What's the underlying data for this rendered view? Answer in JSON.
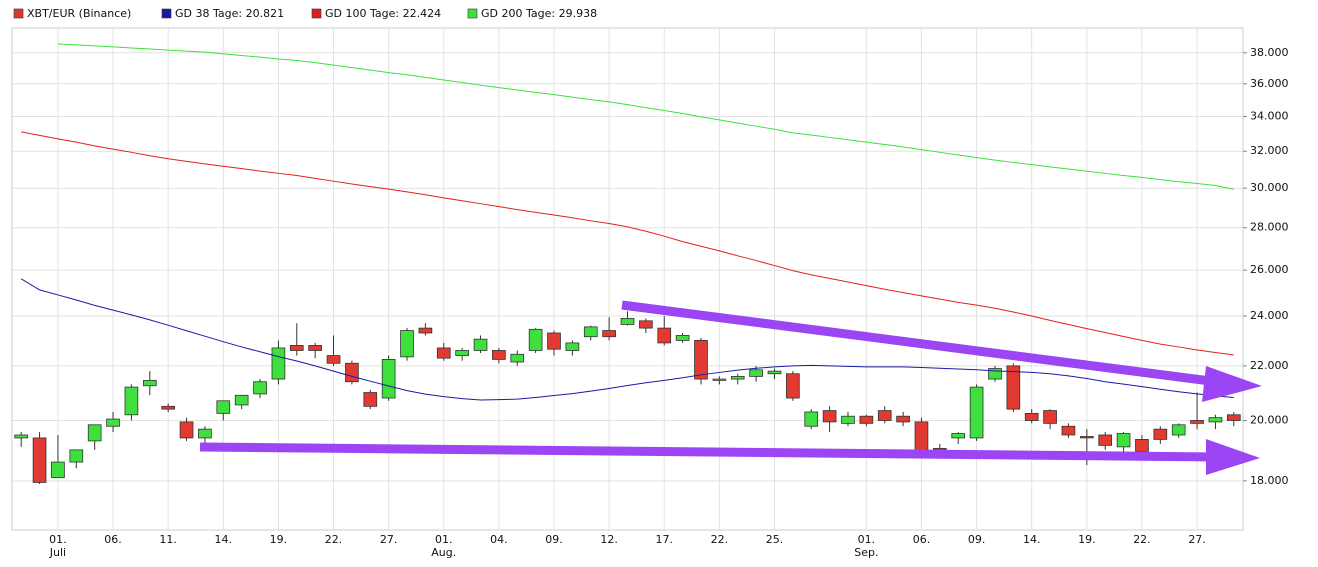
{
  "chart_data": {
    "type": "candlestick",
    "log_scale": true,
    "grid": true,
    "categories": [
      null,
      null,
      "01.",
      null,
      null,
      "06.",
      null,
      null,
      "11.",
      null,
      null,
      "14.",
      null,
      null,
      "19.",
      null,
      null,
      "22.",
      null,
      null,
      "27.",
      null,
      null,
      "01.",
      null,
      null,
      "04.",
      null,
      null,
      "09.",
      null,
      null,
      "12.",
      null,
      null,
      "17.",
      null,
      null,
      "22.",
      null,
      null,
      "25.",
      null,
      null,
      null,
      null,
      "01.",
      null,
      null,
      "06.",
      null,
      null,
      "09.",
      null,
      null,
      "14.",
      null,
      null,
      "19.",
      null,
      null,
      "22.",
      null,
      null,
      "27.",
      null,
      null
    ],
    "category_groups": [
      null,
      null,
      "Juli",
      null,
      null,
      null,
      null,
      null,
      null,
      null,
      null,
      null,
      null,
      null,
      null,
      null,
      null,
      null,
      null,
      null,
      null,
      null,
      null,
      "Aug.",
      null,
      null,
      null,
      null,
      null,
      null,
      null,
      null,
      null,
      null,
      null,
      null,
      null,
      null,
      null,
      null,
      null,
      null,
      null,
      null,
      null,
      null,
      "Sep.",
      null,
      null,
      null,
      null,
      null,
      null,
      null,
      null,
      null,
      null,
      null,
      null,
      null,
      null,
      null,
      null,
      null,
      null,
      null,
      null
    ],
    "candles": {
      "name": "XBT/EUR (Binance)",
      "color": "#d93a30",
      "up_color": "#3ee03e",
      "down_color": "#e23a30",
      "open": [
        19400,
        19400,
        18100,
        18600,
        19300,
        19800,
        20200,
        21250,
        20500,
        19950,
        19400,
        20250,
        20550,
        20950,
        21500,
        22800,
        22800,
        22400,
        22100,
        21000,
        20800,
        22350,
        23500,
        22700,
        22400,
        22600,
        22600,
        22150,
        22600,
        23300,
        22600,
        23150,
        23400,
        23650,
        23800,
        23500,
        23000,
        23000,
        21450,
        21500,
        21600,
        21700,
        21700,
        19800,
        20350,
        19900,
        20150,
        20350,
        20150,
        19950,
        19050,
        19400,
        19400,
        21500,
        22000,
        20250,
        20350,
        19800,
        19450,
        19500,
        19100,
        19350,
        19700,
        19500,
        20000,
        19950,
        20200
      ],
      "high": [
        19600,
        19600,
        19500,
        19000,
        19600,
        20300,
        21300,
        21800,
        20600,
        20100,
        19800,
        20500,
        20900,
        21500,
        23000,
        23700,
        22900,
        23200,
        22200,
        21100,
        22400,
        23500,
        23700,
        22900,
        22700,
        23200,
        22700,
        22600,
        23500,
        23400,
        23000,
        23600,
        23950,
        24200,
        23900,
        24000,
        23300,
        23100,
        21600,
        21700,
        22000,
        21900,
        21800,
        20400,
        20500,
        20300,
        20200,
        20500,
        20300,
        20100,
        19200,
        19600,
        21300,
        22000,
        22100,
        20400,
        20400,
        19900,
        19700,
        19600,
        19600,
        19500,
        19800,
        19900,
        21000,
        20200,
        20300
      ],
      "low": [
        19100,
        17900,
        18100,
        18400,
        19000,
        19600,
        20000,
        20900,
        20300,
        19300,
        19200,
        20000,
        20400,
        20800,
        21300,
        22400,
        22300,
        22000,
        21300,
        20400,
        20700,
        22200,
        23200,
        22200,
        22200,
        22500,
        22100,
        22000,
        22500,
        22400,
        22400,
        23000,
        23000,
        23600,
        23300,
        22800,
        22900,
        21300,
        21300,
        21300,
        21400,
        21500,
        20700,
        19700,
        19600,
        19800,
        19800,
        19900,
        19800,
        18800,
        18900,
        19200,
        19300,
        21400,
        20300,
        19900,
        19700,
        19400,
        18500,
        19000,
        18900,
        18700,
        19200,
        19400,
        19700,
        19700,
        19800
      ],
      "close": [
        19500,
        17950,
        18600,
        19000,
        19850,
        20050,
        21200,
        21450,
        20400,
        19400,
        19700,
        20700,
        20900,
        21400,
        22700,
        22600,
        22600,
        22100,
        21400,
        20500,
        22250,
        23400,
        23300,
        22300,
        22600,
        23050,
        22250,
        22450,
        23450,
        22650,
        22900,
        23550,
        23150,
        23900,
        23500,
        22900,
        23200,
        21500,
        21500,
        21600,
        21850,
        21800,
        20800,
        20300,
        19950,
        20150,
        19900,
        20000,
        19950,
        19000,
        19000,
        19550,
        21200,
        21900,
        20400,
        20000,
        19900,
        19500,
        19400,
        19150,
        19550,
        18950,
        19350,
        19850,
        19900,
        20100,
        20000
      ]
    },
    "series": [
      {
        "name": "GD 38 Tage: 20.821",
        "color": "#1a1aa8",
        "values": [
          25610,
          25120,
          24900,
          24680,
          24450,
          24250,
          24050,
          23840,
          23620,
          23390,
          23170,
          22950,
          22740,
          22550,
          22360,
          22190,
          22000,
          21800,
          21600,
          21420,
          21240,
          21070,
          20940,
          20850,
          20780,
          20730,
          20740,
          20760,
          20820,
          20890,
          20960,
          21050,
          21150,
          21260,
          21360,
          21450,
          21550,
          21660,
          21750,
          21840,
          21910,
          21960,
          22000,
          22020,
          22000,
          21980,
          21960,
          21960,
          21960,
          21940,
          21910,
          21880,
          21850,
          21810,
          21780,
          21750,
          21700,
          21620,
          21520,
          21400,
          21310,
          21220,
          21120,
          21030,
          20950,
          20880,
          20820
        ]
      },
      {
        "name": "GD 100 Tage: 22.424",
        "color": "#e02020",
        "values": [
          33100,
          32900,
          32700,
          32510,
          32300,
          32120,
          31940,
          31750,
          31580,
          31440,
          31300,
          31170,
          31040,
          30910,
          30790,
          30670,
          30520,
          30370,
          30220,
          30080,
          29950,
          29810,
          29660,
          29500,
          29350,
          29200,
          29050,
          28900,
          28760,
          28630,
          28490,
          28340,
          28210,
          28040,
          27830,
          27590,
          27330,
          27110,
          26890,
          26660,
          26440,
          26210,
          25980,
          25790,
          25630,
          25470,
          25310,
          25150,
          25000,
          24860,
          24720,
          24580,
          24460,
          24330,
          24170,
          24000,
          23820,
          23650,
          23480,
          23320,
          23160,
          23000,
          22850,
          22740,
          22620,
          22520,
          22420
        ]
      },
      {
        "name": "GD 200 Tage: 29.938",
        "color": "#3ee03e",
        "values": [
          null,
          null,
          38590,
          38530,
          38460,
          38390,
          38320,
          38250,
          38180,
          38110,
          38040,
          37930,
          37820,
          37710,
          37590,
          37490,
          37350,
          37190,
          37030,
          36870,
          36710,
          36570,
          36400,
          36240,
          36080,
          35910,
          35760,
          35610,
          35460,
          35320,
          35170,
          35020,
          34880,
          34710,
          34530,
          34360,
          34180,
          33980,
          33800,
          33610,
          33430,
          33250,
          33040,
          32920,
          32780,
          32650,
          32510,
          32380,
          32240,
          32090,
          31940,
          31790,
          31650,
          31510,
          31380,
          31260,
          31140,
          31020,
          30900,
          30790,
          30670,
          30570,
          30450,
          30340,
          30250,
          30140,
          29940
        ]
      }
    ],
    "ylim": [
      16520,
      39680
    ],
    "yticks": [
      {
        "value": 18000,
        "label": "18.000"
      },
      {
        "value": 20000,
        "label": "20.000"
      },
      {
        "value": 22000,
        "label": "22.000"
      },
      {
        "value": 24000,
        "label": "24.000"
      },
      {
        "value": 26000,
        "label": "26.000"
      },
      {
        "value": 28000,
        "label": "28.000"
      },
      {
        "value": 30000,
        "label": "30.000"
      },
      {
        "value": 32000,
        "label": "32.000"
      },
      {
        "value": 34000,
        "label": "34.000"
      },
      {
        "value": 36000,
        "label": "36.000"
      },
      {
        "value": 38000,
        "label": "38.000"
      }
    ]
  }
}
